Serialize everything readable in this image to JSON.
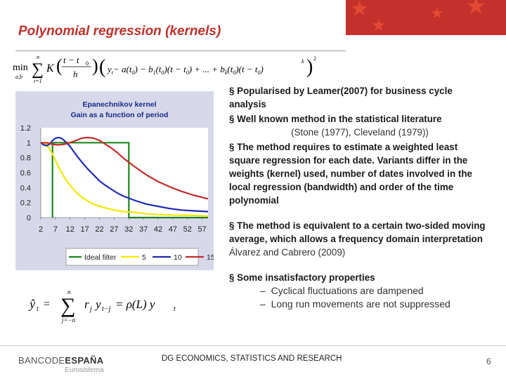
{
  "slide": {
    "title": "Polynomial regression (kernels)",
    "footer": "DG ECONOMICS, STATISTICS AND RESEARCH",
    "page_number": "6",
    "logo": {
      "part1": "BANCODE",
      "part2": "ESPAÑA",
      "sub": "Eurosistema"
    }
  },
  "formula_top": {
    "min": "min",
    "sub": "a,b",
    "sum_top": "n",
    "sum_bottom": "t=1",
    "K": "K",
    "frac_num": "t − t",
    "frac_num_sub": "0",
    "frac_den": "h",
    "body": "y − a(t) − b(t)(t − t) + ... + b(t)(t − t)",
    "body_parts": [
      "y",
      "t",
      "− a(t",
      "0",
      ") − b",
      "1",
      "(t",
      "0",
      ")(t − t",
      "0",
      ") + ... + b",
      "k",
      "(t",
      "0",
      ")(t − t",
      "0",
      ")"
    ],
    "exp_k": "k",
    "exp_2": "2"
  },
  "formula_bottom": {
    "lhs": "ŷ",
    "lhs_sub": "t",
    "eq": "=",
    "sum_top": "n",
    "sum_bottom": "j=−n",
    "term": "r",
    "term_sub": "j",
    "y": "y",
    "y_sub": "t−j",
    "rhs": "= ρ(L) y",
    "rhs_sub": "t"
  },
  "bullets": {
    "b1": "Popularised by Leamer(2007) for business cycle analysis",
    "b2": "Well known method in the statistical literature",
    "b2_cite": "(Stone (1977), Cleveland (1979))",
    "b3": "The method requires to estimate a weighted least square regression for each date. Variants differ in the weights (kernel) used, number of dates involved in the local regression (bandwidth) and order of the time polynomial",
    "b4": "The method is equivalent to a certain two-sided moving average, which allows a frequency domain interpretation",
    "b4_cite": "Álvarez and Cabrero (2009)",
    "b5": "Some insatisfactory properties",
    "sub1": "Cyclical fluctuations are dampened",
    "sub2": "Long run movements are not suppressed",
    "dash": "–"
  },
  "chart_data": {
    "type": "line",
    "title": "Epanechnikov kernel",
    "subtitle": "Gain as a function of period",
    "x_ticks": [
      "2",
      "7",
      "12",
      "17",
      "22",
      "27",
      "32",
      "37",
      "42",
      "47",
      "52",
      "57"
    ],
    "y_ticks": [
      "0",
      "0.2",
      "0.4",
      "0.6",
      "0.8",
      "1",
      "1.2"
    ],
    "ylim": [
      0,
      1.2
    ],
    "xlim": [
      2,
      59
    ],
    "legend_position": "bottom",
    "series": [
      {
        "name": "Ideal filter",
        "color": "#1a8a1a",
        "x": [
          6,
          6,
          32,
          32,
          59
        ],
        "y": [
          0,
          1,
          1,
          0,
          0
        ]
      },
      {
        "name": "5",
        "color": "#f2e800",
        "x": [
          2,
          4,
          6,
          8,
          10,
          12,
          14,
          16,
          18,
          20,
          22,
          26,
          30,
          34,
          38,
          42,
          46,
          50,
          54,
          59
        ],
        "y": [
          1.0,
          0.98,
          0.85,
          0.68,
          0.54,
          0.43,
          0.34,
          0.27,
          0.22,
          0.18,
          0.15,
          0.11,
          0.08,
          0.07,
          0.05,
          0.04,
          0.035,
          0.03,
          0.03,
          0.02
        ]
      },
      {
        "name": "10",
        "color": "#1f2bb0",
        "x": [
          2,
          3,
          4,
          5,
          6,
          7,
          8,
          9,
          10,
          12,
          14,
          16,
          18,
          20,
          22,
          24,
          26,
          28,
          30,
          34,
          38,
          42,
          46,
          50,
          54,
          59
        ],
        "y": [
          1.0,
          0.97,
          0.96,
          0.98,
          1.03,
          1.06,
          1.07,
          1.06,
          1.03,
          0.95,
          0.84,
          0.74,
          0.65,
          0.57,
          0.49,
          0.43,
          0.38,
          0.33,
          0.29,
          0.23,
          0.18,
          0.15,
          0.12,
          0.1,
          0.09,
          0.08
        ]
      },
      {
        "name": "15",
        "color": "#c22b2b",
        "x": [
          2,
          4,
          6,
          8,
          10,
          12,
          14,
          16,
          18,
          20,
          22,
          24,
          26,
          28,
          30,
          34,
          38,
          42,
          46,
          50,
          54,
          59
        ],
        "y": [
          1.0,
          1.0,
          0.98,
          0.97,
          0.98,
          1.0,
          1.03,
          1.06,
          1.07,
          1.06,
          1.03,
          0.98,
          0.93,
          0.87,
          0.8,
          0.68,
          0.57,
          0.48,
          0.41,
          0.35,
          0.3,
          0.25
        ]
      }
    ]
  },
  "colors": {
    "accent": "#c0312b",
    "chart_bg": "#d7d9ea"
  }
}
